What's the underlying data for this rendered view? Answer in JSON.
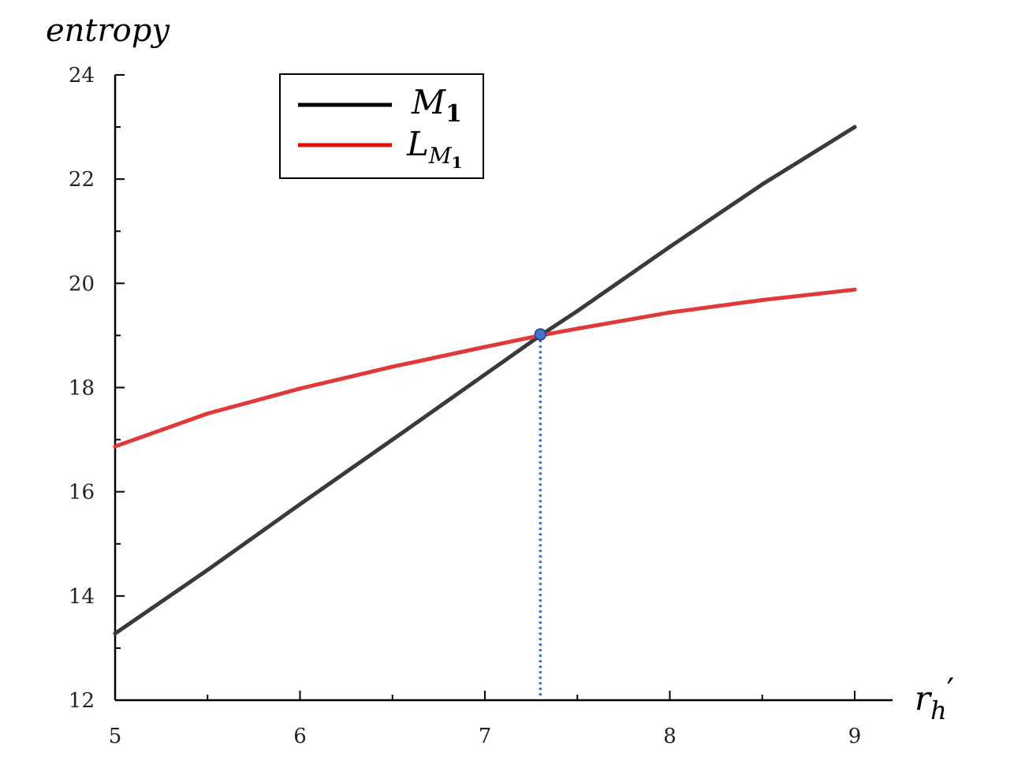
{
  "chart_data": {
    "type": "line",
    "xlabel": "r_h′",
    "ylabel": "entropy",
    "xlim": [
      5,
      9.2
    ],
    "ylim": [
      12,
      24
    ],
    "x_ticks": [
      5,
      6,
      7,
      8,
      9
    ],
    "y_ticks": [
      12,
      14,
      16,
      18,
      20,
      22,
      24
    ],
    "grid": false,
    "legend_position": "top-left",
    "series": [
      {
        "name": "M_1",
        "color": "#3a3a3a",
        "legend_color": "#000000",
        "x": [
          5,
          5.5,
          6,
          6.5,
          7,
          7.3,
          7.5,
          8,
          8.5,
          9
        ],
        "values": [
          13.28,
          14.5,
          15.76,
          17.0,
          18.25,
          19.0,
          19.47,
          20.7,
          21.9,
          23.0
        ]
      },
      {
        "name": "L_M1",
        "color": "#e0393a",
        "legend_color": "#e01010",
        "x": [
          5,
          5.5,
          6,
          6.5,
          7,
          7.3,
          7.5,
          8,
          8.5,
          9
        ],
        "values": [
          16.87,
          17.5,
          17.98,
          18.4,
          18.78,
          19.0,
          19.13,
          19.44,
          19.68,
          19.88
        ]
      }
    ],
    "intersection": {
      "x": 7.3,
      "y": 19.02,
      "color": "#4472c4"
    }
  },
  "legend": {
    "m1_base": "M",
    "m1_sub": "1",
    "lm1_base": "L",
    "lm1_sub": "M",
    "lm1_subsub": "1"
  },
  "axes": {
    "xlabel_base": "r",
    "xlabel_sub": "h",
    "xlabel_prime": "′",
    "ylabel": "entropy"
  }
}
